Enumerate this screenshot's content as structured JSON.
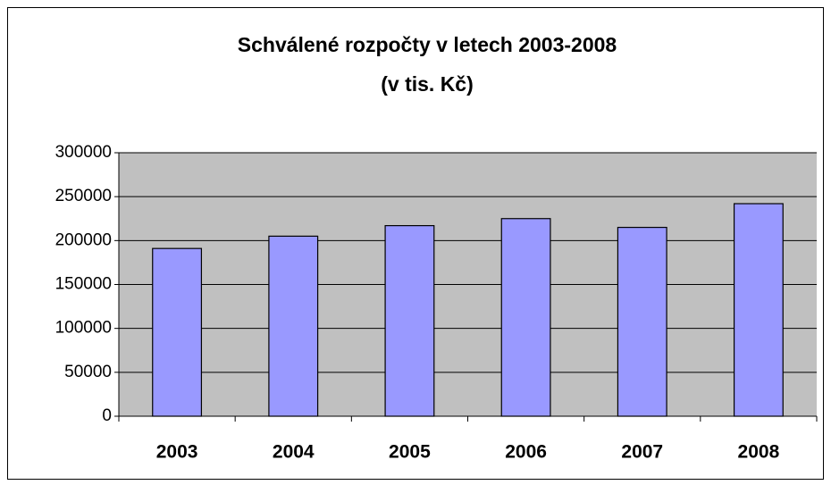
{
  "chart_data": {
    "type": "bar",
    "title": "Schválené rozpočty v letech 2003-2008",
    "subtitle": "(v tis. Kč)",
    "categories": [
      "2003",
      "2004",
      "2005",
      "2006",
      "2007",
      "2008"
    ],
    "values": [
      191000,
      205000,
      217000,
      225000,
      215000,
      242000
    ],
    "color": "#9999ff",
    "plot_background": "#c0c0c0",
    "ylim": [
      0,
      300000
    ],
    "yticks": [
      0,
      50000,
      100000,
      150000,
      200000,
      250000,
      300000
    ],
    "grid": true
  }
}
